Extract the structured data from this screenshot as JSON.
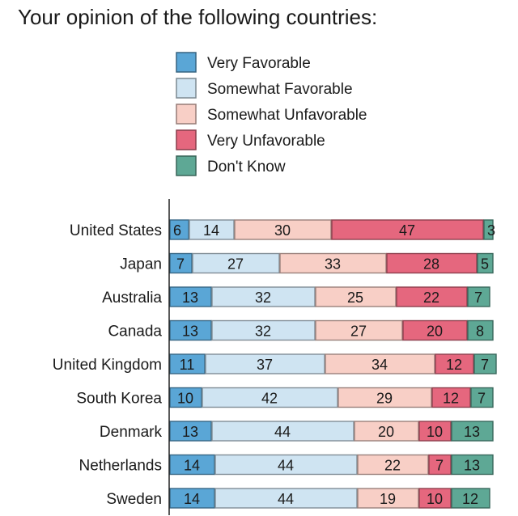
{
  "chart_data": {
    "type": "bar",
    "stacked": true,
    "orientation": "horizontal",
    "normalized_percent": true,
    "title": "Your opinion of the following countries:",
    "xlim": [
      0,
      100
    ],
    "grid": false,
    "legend_position": "top",
    "categories": [
      "United States",
      "Japan",
      "Australia",
      "Canada",
      "United Kingdom",
      "South Korea",
      "Denmark",
      "Netherlands",
      "Sweden"
    ],
    "series": [
      {
        "name": "Very Favorable",
        "color": "#5aa6d6",
        "values": [
          6,
          7,
          13,
          13,
          11,
          10,
          13,
          14,
          14
        ]
      },
      {
        "name": "Somewhat Favorable",
        "color": "#cfe4f2",
        "values": [
          14,
          27,
          32,
          32,
          37,
          42,
          44,
          44,
          44
        ]
      },
      {
        "name": "Somewhat Unfavorable",
        "color": "#f8cfc6",
        "values": [
          30,
          33,
          25,
          27,
          34,
          29,
          20,
          22,
          19
        ]
      },
      {
        "name": "Very Unfavorable",
        "color": "#e5677e",
        "values": [
          47,
          28,
          22,
          20,
          12,
          12,
          10,
          7,
          10
        ]
      },
      {
        "name": "Don't Know",
        "color": "#5ea895",
        "values": [
          3,
          5,
          7,
          8,
          7,
          7,
          13,
          13,
          12
        ]
      }
    ]
  }
}
